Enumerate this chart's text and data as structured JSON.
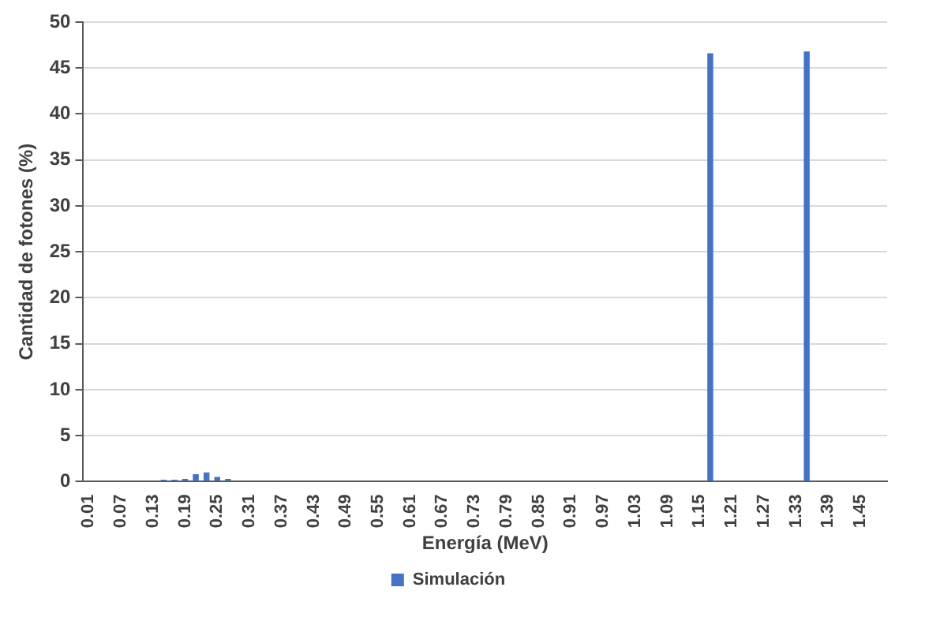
{
  "chart_data": {
    "type": "bar",
    "xlabel": "Energía (MeV)",
    "ylabel": "Cantidad de fotones (%)",
    "categories": [
      "0.01",
      null,
      null,
      "0.07",
      null,
      null,
      "0.13",
      null,
      null,
      "0.19",
      null,
      null,
      "0.25",
      null,
      null,
      "0.31",
      null,
      null,
      "0.37",
      null,
      null,
      "0.43",
      null,
      null,
      "0.49",
      null,
      null,
      "0.55",
      null,
      null,
      "0.61",
      null,
      null,
      "0.67",
      null,
      null,
      "0.73",
      null,
      null,
      "0.79",
      null,
      null,
      "0.85",
      null,
      null,
      "0.91",
      null,
      null,
      "0.97",
      null,
      null,
      "1.03",
      null,
      null,
      "1.09",
      null,
      null,
      "1.15",
      null,
      null,
      "1.21",
      null,
      null,
      "1.27",
      null,
      null,
      "1.33",
      null,
      null,
      "1.39",
      null,
      null,
      "1.45",
      null,
      null
    ],
    "series": [
      {
        "name": "Simulación",
        "color": "#4472c4",
        "values": [
          0,
          0,
          0,
          0,
          0,
          0,
          0,
          0.2,
          0.2,
          0.3,
          0.8,
          1.0,
          0.5,
          0.3,
          0,
          0,
          0,
          0,
          0,
          0,
          0,
          0,
          0,
          0,
          0,
          0,
          0,
          0,
          0,
          0,
          0,
          0,
          0,
          0,
          0,
          0,
          0,
          0,
          0,
          0,
          0,
          0,
          0,
          0,
          0,
          0,
          0,
          0,
          0,
          0,
          0,
          0,
          0,
          0,
          0,
          0,
          0,
          0,
          46.6,
          0,
          0,
          0,
          0,
          0,
          0,
          0,
          0,
          46.8,
          0,
          0,
          0,
          0,
          0,
          0,
          0
        ]
      }
    ],
    "ylim": [
      0,
      50
    ],
    "yticks": [
      0,
      5,
      10,
      15,
      20,
      25,
      30,
      35,
      40,
      45,
      50
    ],
    "grid": "y",
    "legend": "bottom"
  }
}
